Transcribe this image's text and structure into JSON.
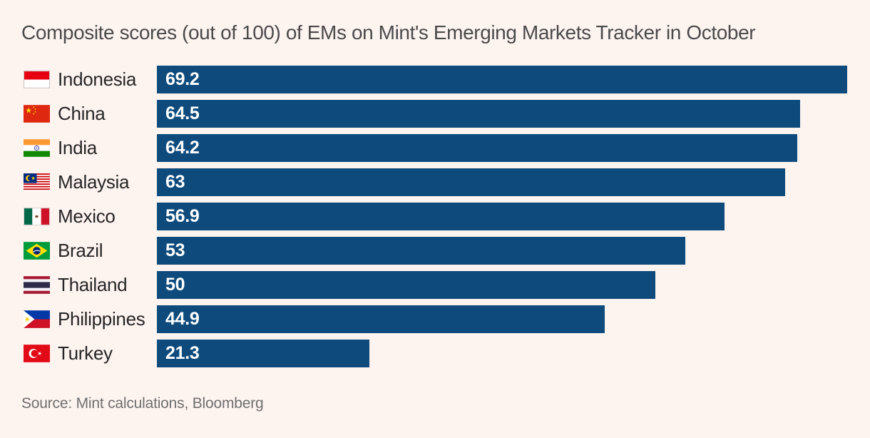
{
  "title": "Composite scores (out of 100) of EMs on Mint's Emerging Markets Tracker in October",
  "source": "Source: Mint calculations, Bloomberg",
  "colors": {
    "background": "#fdf4f0",
    "bar": "#0e4b7c",
    "title_text": "#4a4a4a",
    "label_text": "#262626",
    "value_text": "#ffffff",
    "source_text": "#6f6f6f"
  },
  "chart_data": {
    "type": "bar",
    "orientation": "horizontal",
    "title": "Composite scores (out of 100) of EMs on Mint's Emerging Markets Tracker in October",
    "categories": [
      "Indonesia",
      "China",
      "India",
      "Malaysia",
      "Mexico",
      "Brazil",
      "Thailand",
      "Philippines",
      "Turkey"
    ],
    "values": [
      69.2,
      64.5,
      64.2,
      63,
      56.9,
      53,
      50,
      44.9,
      21.3
    ],
    "value_labels": [
      "69.2",
      "64.5",
      "64.2",
      "63",
      "56.9",
      "53",
      "50",
      "44.9",
      "21.3"
    ],
    "flags": [
      "indonesia",
      "china",
      "india",
      "malaysia",
      "mexico",
      "brazil",
      "thailand",
      "philippines",
      "turkey"
    ],
    "xlim": [
      0,
      69.2
    ],
    "grid": false,
    "legend": false,
    "bar_color": "#0e4b7c",
    "value_label_position": "inside-left"
  }
}
